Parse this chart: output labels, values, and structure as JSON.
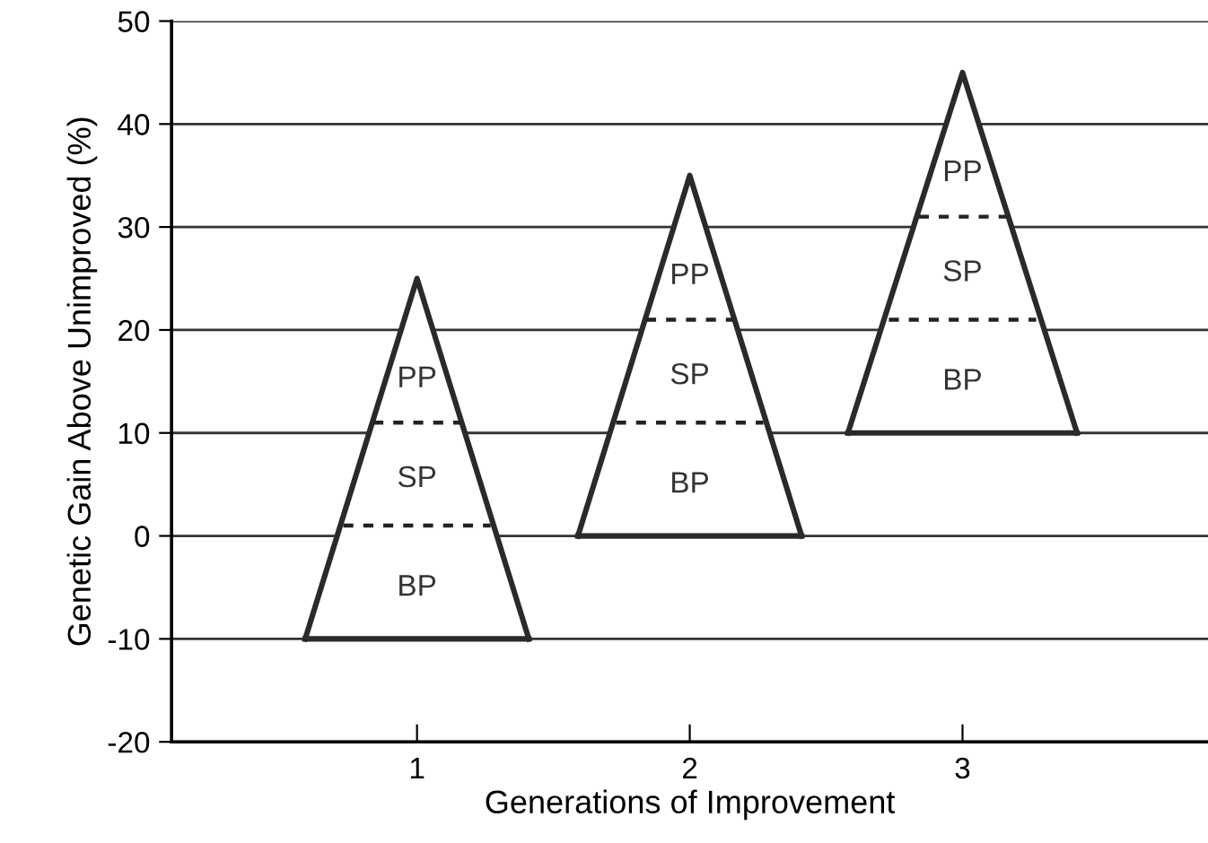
{
  "chart_data": {
    "type": "line",
    "xlabel": "Generations of Improvement",
    "ylabel": "Genetic Gain Above Unimproved (%)",
    "series": [
      {
        "color": "#2a2a2a",
        "x": [
          0.59,
          1,
          1.41
        ],
        "values": [
          -10,
          25,
          -10
        ]
      },
      {
        "color": "#2a2a2a",
        "x": [
          1.59,
          2,
          2.41
        ],
        "values": [
          0,
          35,
          0
        ]
      },
      {
        "color": "#2a2a2a",
        "x": [
          2.58,
          3,
          3.42
        ],
        "values": [
          10,
          45,
          10
        ]
      },
      {
        "color": "#2a2a2a",
        "x": [
          0.59,
          1.41
        ],
        "values": [
          -10,
          -10
        ]
      },
      {
        "color": "#2a2a2a",
        "x": [
          1.59,
          2.41
        ],
        "values": [
          0,
          0
        ]
      },
      {
        "color": "#2a2a2a",
        "x": [
          2.58,
          3.42
        ],
        "values": [
          10,
          10
        ]
      },
      {
        "color": "#222222",
        "line_style": "dashed",
        "x": [
          0.73,
          1.27
        ],
        "values": [
          1,
          1
        ]
      },
      {
        "color": "#222222",
        "line_style": "dashed",
        "x": [
          0.84,
          1.16
        ],
        "values": [
          11,
          11
        ]
      },
      {
        "color": "#222222",
        "line_style": "dashed",
        "x": [
          1.73,
          2.27
        ],
        "values": [
          11,
          11
        ]
      },
      {
        "color": "#222222",
        "line_style": "dashed",
        "x": [
          1.84,
          2.16
        ],
        "values": [
          21,
          21
        ]
      },
      {
        "color": "#222222",
        "line_style": "dashed",
        "x": [
          2.73,
          3.27
        ],
        "values": [
          21,
          21
        ]
      },
      {
        "color": "#222222",
        "line_style": "dashed",
        "x": [
          2.84,
          3.16
        ],
        "values": [
          31,
          31
        ]
      }
    ],
    "annotations": [
      "BP",
      "SP",
      "PP",
      "BP",
      "SP",
      "PP",
      "BP",
      "SP",
      "PP"
    ],
    "xlim": [
      0.1,
      3.9
    ],
    "xticks": [
      1,
      2,
      3
    ],
    "ylim": [
      -20,
      50
    ],
    "yticks": [
      -20,
      -10,
      0,
      10,
      20,
      30,
      40,
      50
    ],
    "grid": "y"
  }
}
